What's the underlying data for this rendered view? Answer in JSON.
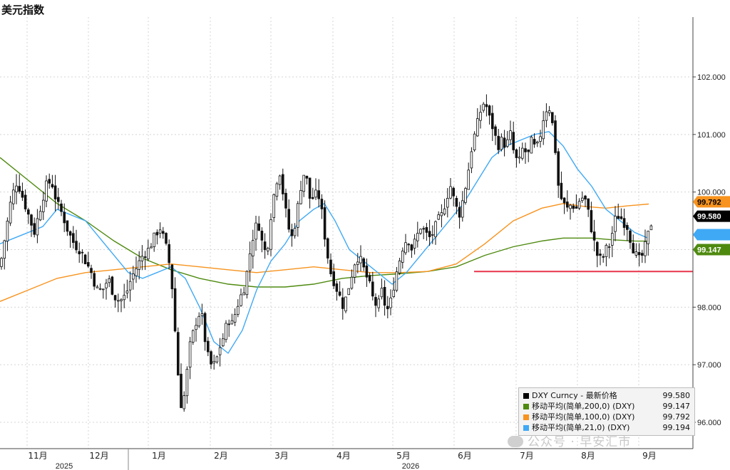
{
  "title": "美元指数",
  "chart_data": {
    "type": "candlestick",
    "title": "美元指数",
    "y_axis": {
      "side": "right",
      "range": [
        95.55,
        103.0
      ],
      "ticks": [
        96.0,
        97.0,
        98.0,
        99.0,
        100.0,
        101.0,
        102.0
      ],
      "tick_labels": [
        "96.000",
        "97.000",
        "98.000",
        "99.000",
        "100.000",
        "101.000",
        "102.000"
      ]
    },
    "x_axis": {
      "month_labels": [
        "11月",
        "12月",
        "1月",
        "2月",
        "3月",
        "4月",
        "5月",
        "6月",
        "7月",
        "8月",
        "9月"
      ],
      "year_labels": [
        "2025",
        "2026"
      ]
    },
    "last_values": {
      "price": "99.580",
      "ma100": "99.792",
      "ma200": "99.147",
      "ma21": "99.194"
    },
    "series": [
      {
        "name": "DXY Curncy - 最新价格",
        "color": "#000000",
        "last": "99.580"
      },
      {
        "name": "移动平均(简单,200,0) (DXY)",
        "color": "#4f8a10",
        "last": "99.147"
      },
      {
        "name": "移动平均(简单,100,0) (DXY)",
        "color": "#f7931e",
        "last": "99.792"
      },
      {
        "name": "移动平均(简单,21,0) (DXY)",
        "color": "#3fa9f5",
        "last": "99.194"
      }
    ],
    "support_line": 98.62,
    "close_path": [
      [
        0,
        98.7
      ],
      [
        8,
        99.3
      ],
      [
        16,
        99.9
      ],
      [
        24,
        100.2
      ],
      [
        32,
        99.9
      ],
      [
        40,
        99.6
      ],
      [
        48,
        99.3
      ],
      [
        56,
        99.7
      ],
      [
        64,
        100.1
      ],
      [
        72,
        100.2
      ],
      [
        80,
        99.8
      ],
      [
        88,
        99.6
      ],
      [
        96,
        99.3
      ],
      [
        104,
        99.1
      ],
      [
        112,
        99.0
      ],
      [
        120,
        98.8
      ],
      [
        128,
        98.6
      ],
      [
        136,
        98.3
      ],
      [
        144,
        98.3
      ],
      [
        152,
        98.5
      ],
      [
        160,
        98.2
      ],
      [
        168,
        98.1
      ],
      [
        176,
        98.2
      ],
      [
        184,
        98.5
      ],
      [
        192,
        98.7
      ],
      [
        200,
        98.9
      ],
      [
        208,
        99.0
      ],
      [
        216,
        99.2
      ],
      [
        224,
        99.4
      ],
      [
        232,
        99.1
      ],
      [
        240,
        98.6
      ],
      [
        245,
        97.7
      ],
      [
        250,
        96.8
      ],
      [
        255,
        96.2
      ],
      [
        260,
        96.6
      ],
      [
        266,
        97.3
      ],
      [
        272,
        97.6
      ],
      [
        278,
        97.9
      ],
      [
        284,
        97.8
      ],
      [
        290,
        97.2
      ],
      [
        296,
        97.0
      ],
      [
        302,
        97.0
      ],
      [
        308,
        97.3
      ],
      [
        314,
        97.5
      ],
      [
        320,
        97.8
      ],
      [
        326,
        97.7
      ],
      [
        332,
        98.0
      ],
      [
        338,
        98.2
      ],
      [
        344,
        98.4
      ],
      [
        350,
        98.9
      ],
      [
        356,
        99.3
      ],
      [
        362,
        99.5
      ],
      [
        368,
        99.1
      ],
      [
        374,
        98.9
      ],
      [
        380,
        99.6
      ],
      [
        386,
        100.1
      ],
      [
        392,
        100.4
      ],
      [
        398,
        99.9
      ],
      [
        404,
        99.4
      ],
      [
        410,
        99.2
      ],
      [
        416,
        99.6
      ],
      [
        422,
        100.1
      ],
      [
        428,
        100.4
      ],
      [
        434,
        99.9
      ],
      [
        440,
        99.9
      ],
      [
        446,
        100.0
      ],
      [
        452,
        99.6
      ],
      [
        458,
        99.0
      ],
      [
        464,
        98.6
      ],
      [
        470,
        98.4
      ],
      [
        476,
        98.2
      ],
      [
        482,
        98.0
      ],
      [
        488,
        98.3
      ],
      [
        494,
        98.6
      ],
      [
        500,
        98.9
      ],
      [
        506,
        98.8
      ],
      [
        512,
        98.6
      ],
      [
        518,
        98.4
      ],
      [
        524,
        98.1
      ],
      [
        530,
        98.0
      ],
      [
        536,
        98.3
      ],
      [
        542,
        97.9
      ],
      [
        548,
        98.1
      ],
      [
        554,
        98.5
      ],
      [
        560,
        98.8
      ],
      [
        566,
        99.1
      ],
      [
        572,
        99.2
      ],
      [
        578,
        99.0
      ],
      [
        584,
        99.2
      ],
      [
        590,
        99.4
      ],
      [
        596,
        99.3
      ],
      [
        602,
        99.2
      ],
      [
        608,
        99.3
      ],
      [
        614,
        99.5
      ],
      [
        620,
        99.6
      ],
      [
        626,
        99.9
      ],
      [
        632,
        100.1
      ],
      [
        638,
        99.8
      ],
      [
        644,
        99.6
      ],
      [
        650,
        99.9
      ],
      [
        656,
        100.3
      ],
      [
        662,
        100.8
      ],
      [
        668,
        101.1
      ],
      [
        674,
        101.4
      ],
      [
        680,
        101.6
      ],
      [
        686,
        101.3
      ],
      [
        692,
        101.1
      ],
      [
        698,
        100.8
      ],
      [
        704,
        100.9
      ],
      [
        710,
        100.8
      ],
      [
        716,
        101.0
      ],
      [
        722,
        100.6
      ],
      [
        728,
        100.5
      ],
      [
        734,
        100.8
      ],
      [
        740,
        100.6
      ],
      [
        746,
        100.9
      ],
      [
        752,
        100.7
      ],
      [
        758,
        101.0
      ],
      [
        764,
        101.4
      ],
      [
        770,
        101.5
      ],
      [
        776,
        101.1
      ],
      [
        780,
        100.6
      ],
      [
        784,
        100.0
      ],
      [
        790,
        99.8
      ],
      [
        796,
        99.7
      ],
      [
        802,
        99.8
      ],
      [
        808,
        99.7
      ],
      [
        814,
        99.9
      ],
      [
        820,
        99.9
      ],
      [
        826,
        99.6
      ],
      [
        832,
        99.2
      ],
      [
        838,
        98.9
      ],
      [
        844,
        98.8
      ],
      [
        850,
        99.0
      ],
      [
        856,
        99.1
      ],
      [
        862,
        99.5
      ],
      [
        868,
        99.6
      ],
      [
        874,
        99.5
      ],
      [
        880,
        99.4
      ],
      [
        886,
        99.1
      ],
      [
        892,
        98.9
      ],
      [
        898,
        98.8
      ],
      [
        904,
        99.0
      ],
      [
        910,
        99.3
      ],
      [
        916,
        99.58
      ]
    ],
    "ma21_path": [
      [
        0,
        99.1
      ],
      [
        20,
        99.2
      ],
      [
        40,
        99.3
      ],
      [
        60,
        99.4
      ],
      [
        80,
        99.7
      ],
      [
        100,
        99.6
      ],
      [
        120,
        99.5
      ],
      [
        140,
        99.2
      ],
      [
        160,
        98.9
      ],
      [
        180,
        98.6
      ],
      [
        200,
        98.5
      ],
      [
        220,
        98.6
      ],
      [
        240,
        98.7
      ],
      [
        260,
        98.5
      ],
      [
        280,
        98.0
      ],
      [
        300,
        97.4
      ],
      [
        320,
        97.2
      ],
      [
        340,
        97.6
      ],
      [
        360,
        98.3
      ],
      [
        380,
        98.8
      ],
      [
        400,
        99.1
      ],
      [
        420,
        99.5
      ],
      [
        440,
        99.7
      ],
      [
        455,
        99.8
      ],
      [
        470,
        99.5
      ],
      [
        490,
        99.0
      ],
      [
        510,
        98.8
      ],
      [
        530,
        98.6
      ],
      [
        550,
        98.4
      ],
      [
        570,
        98.6
      ],
      [
        590,
        98.9
      ],
      [
        610,
        99.2
      ],
      [
        630,
        99.5
      ],
      [
        650,
        99.8
      ],
      [
        670,
        100.2
      ],
      [
        690,
        100.6
      ],
      [
        710,
        100.8
      ],
      [
        730,
        100.9
      ],
      [
        750,
        101.0
      ],
      [
        770,
        101.05
      ],
      [
        790,
        100.8
      ],
      [
        810,
        100.4
      ],
      [
        830,
        100.1
      ],
      [
        850,
        99.7
      ],
      [
        870,
        99.5
      ],
      [
        890,
        99.3
      ],
      [
        910,
        99.194
      ]
    ],
    "ma100_path": [
      [
        0,
        98.1
      ],
      [
        40,
        98.3
      ],
      [
        80,
        98.5
      ],
      [
        120,
        98.6
      ],
      [
        160,
        98.65
      ],
      [
        200,
        98.7
      ],
      [
        240,
        98.75
      ],
      [
        280,
        98.7
      ],
      [
        320,
        98.65
      ],
      [
        360,
        98.6
      ],
      [
        400,
        98.65
      ],
      [
        440,
        98.7
      ],
      [
        480,
        98.65
      ],
      [
        520,
        98.6
      ],
      [
        560,
        98.6
      ],
      [
        600,
        98.62
      ],
      [
        640,
        98.75
      ],
      [
        680,
        99.1
      ],
      [
        720,
        99.5
      ],
      [
        760,
        99.72
      ],
      [
        790,
        99.8
      ],
      [
        820,
        99.75
      ],
      [
        850,
        99.72
      ],
      [
        880,
        99.76
      ],
      [
        910,
        99.792
      ]
    ],
    "ma200_path": [
      [
        0,
        100.6
      ],
      [
        40,
        100.2
      ],
      [
        80,
        99.8
      ],
      [
        120,
        99.5
      ],
      [
        160,
        99.15
      ],
      [
        200,
        98.85
      ],
      [
        240,
        98.65
      ],
      [
        280,
        98.5
      ],
      [
        320,
        98.4
      ],
      [
        360,
        98.35
      ],
      [
        400,
        98.35
      ],
      [
        440,
        98.4
      ],
      [
        480,
        98.5
      ],
      [
        520,
        98.55
      ],
      [
        560,
        98.58
      ],
      [
        600,
        98.62
      ],
      [
        640,
        98.7
      ],
      [
        680,
        98.9
      ],
      [
        720,
        99.05
      ],
      [
        760,
        99.15
      ],
      [
        790,
        99.2
      ],
      [
        830,
        99.2
      ],
      [
        860,
        99.17
      ],
      [
        890,
        99.15
      ],
      [
        910,
        99.147
      ]
    ]
  }
}
